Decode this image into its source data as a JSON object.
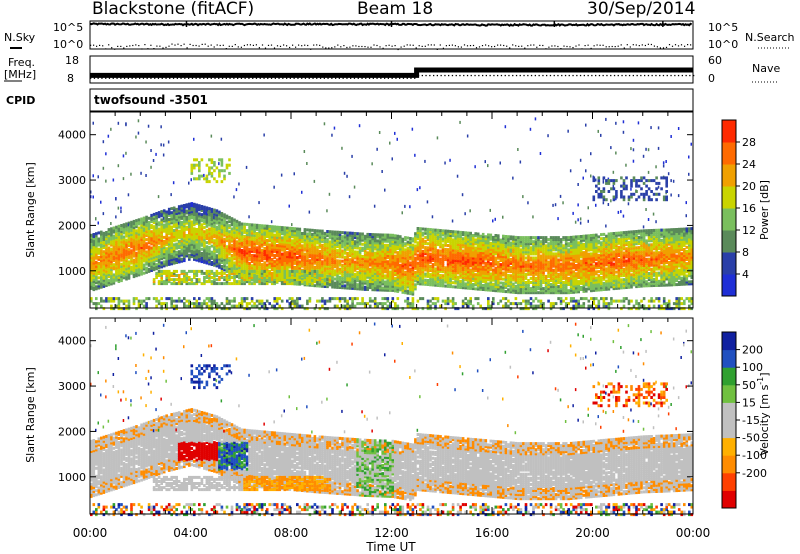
{
  "header": {
    "station": "Blackstone (fitACF)",
    "beam": "Beam 18",
    "date": "30/Sep/2014"
  },
  "strips": {
    "nsky_label": "N.Sky",
    "nsearch_label": "N.Search",
    "nsky_ticks": [
      "10^5",
      "10^0"
    ],
    "nsearch_ticks": [
      "10^5",
      "10^0"
    ],
    "freq_label": "Freq.",
    "freq_unit": "[MHz]",
    "freq_ticks": [
      "18",
      "8"
    ],
    "nave_label": "Nave",
    "nave_ticks": [
      "60",
      "0"
    ],
    "cpid_label": "CPID",
    "cpid_value": "twofsound -3501"
  },
  "x_axis": {
    "label": "Time UT",
    "ticks": [
      "00:00",
      "04:00",
      "08:00",
      "12:00",
      "16:00",
      "20:00",
      "00:00"
    ]
  },
  "colors": {
    "power": [
      "#1f2fd6",
      "#2a3fa8",
      "#5a8a5a",
      "#7abf5e",
      "#c9d400",
      "#f0a000",
      "#ff6a00",
      "#ff2a00"
    ],
    "velocity": [
      "#e00000",
      "#ff4000",
      "#ff8c00",
      "#ffb000",
      "#c0c0c0",
      "#c0c0c0",
      "#70c040",
      "#30a030",
      "#2050c0",
      "#1020a0"
    ]
  },
  "chart_data": [
    {
      "type": "line",
      "title": "N.Sky / N.Search",
      "x_range": [
        "00:00",
        "24:00"
      ],
      "y_scale": "log",
      "ylim": [
        "10^0",
        "10^5"
      ],
      "series": [
        {
          "name": "N.Sky",
          "x": [
            0,
            4,
            8,
            12,
            16,
            20,
            24
          ],
          "values": [
            30000,
            25000,
            28000,
            26000,
            20000,
            22000,
            25000
          ]
        },
        {
          "name": "N.Search",
          "x": [
            0,
            4,
            8,
            12,
            16,
            20,
            24
          ],
          "values": [
            2,
            3,
            2,
            2,
            2,
            2,
            3
          ]
        }
      ]
    },
    {
      "type": "line",
      "title": "Freq. / Nave",
      "x_range": [
        "00:00",
        "24:00"
      ],
      "series": [
        {
          "name": "Freq.",
          "unit": "MHz",
          "x": [
            0,
            13,
            13,
            24
          ],
          "values": [
            10.8,
            10.8,
            12.8,
            12.8
          ]
        },
        {
          "name": "Nave",
          "x": [
            0,
            12.9,
            13,
            24
          ],
          "values": [
            12,
            12,
            18,
            18
          ]
        }
      ]
    },
    {
      "type": "heatmap",
      "title": "Power",
      "xlabel": "Time UT",
      "ylabel": "Slant Range [km]",
      "xlim": [
        "00:00",
        "24:00"
      ],
      "ylim": [
        180,
        4500
      ],
      "yticks": [
        1000,
        2000,
        3000,
        4000
      ],
      "colorbar": {
        "label": "Power [dB]",
        "ticks": [
          4,
          8,
          12,
          16,
          20,
          24,
          28
        ],
        "range": [
          0,
          32
        ]
      },
      "features": [
        {
          "desc": "main band",
          "t": [
            0,
            1,
            2,
            3,
            4,
            5,
            6,
            8,
            9,
            10,
            11,
            12,
            12.8,
            13,
            15,
            17,
            19,
            21,
            22,
            23,
            24
          ],
          "center_km": [
            1200,
            1380,
            1560,
            1760,
            1900,
            1740,
            1450,
            1350,
            1300,
            1260,
            1220,
            1200,
            1120,
            1350,
            1250,
            1150,
            1150,
            1250,
            1300,
            1320,
            1350
          ],
          "peak_db": [
            24,
            26,
            26,
            22,
            20,
            22,
            28,
            28,
            26,
            24,
            24,
            26,
            28,
            28,
            28,
            26,
            26,
            28,
            26,
            26,
            24
          ]
        },
        {
          "desc": "lower band",
          "t_start": 2.5,
          "t_end": 9,
          "range_km": 900,
          "peak_db": 20
        },
        {
          "desc": "near-range echoes",
          "range_km": 250,
          "peak_db": 12
        }
      ]
    },
    {
      "type": "heatmap",
      "title": "Velocity",
      "xlabel": "Time UT",
      "ylabel": "Slant Range [km]",
      "xlim": [
        "00:00",
        "24:00"
      ],
      "ylim": [
        180,
        4500
      ],
      "yticks": [
        1000,
        2000,
        3000,
        4000
      ],
      "colorbar": {
        "label": "Velocity [m s^-1]",
        "ticks": [
          200,
          100,
          50,
          15,
          -15,
          -50,
          -100,
          -200
        ],
        "range": [
          -250,
          250
        ]
      },
      "features": [
        {
          "desc": "main band",
          "t_start": 0,
          "t_end": 24,
          "typical_velocity": 0
        },
        {
          "desc": "red patch",
          "t_start": 3.5,
          "t_end": 5,
          "range_km": 1600,
          "velocity": -220
        },
        {
          "desc": "green/blue patch",
          "t_start": 5,
          "t_end": 6,
          "range_km": 1500,
          "velocity": 120
        },
        {
          "desc": "orange region",
          "t_start": 6,
          "t_end": 10.5,
          "range_km": 1100,
          "velocity": -60
        }
      ]
    }
  ]
}
